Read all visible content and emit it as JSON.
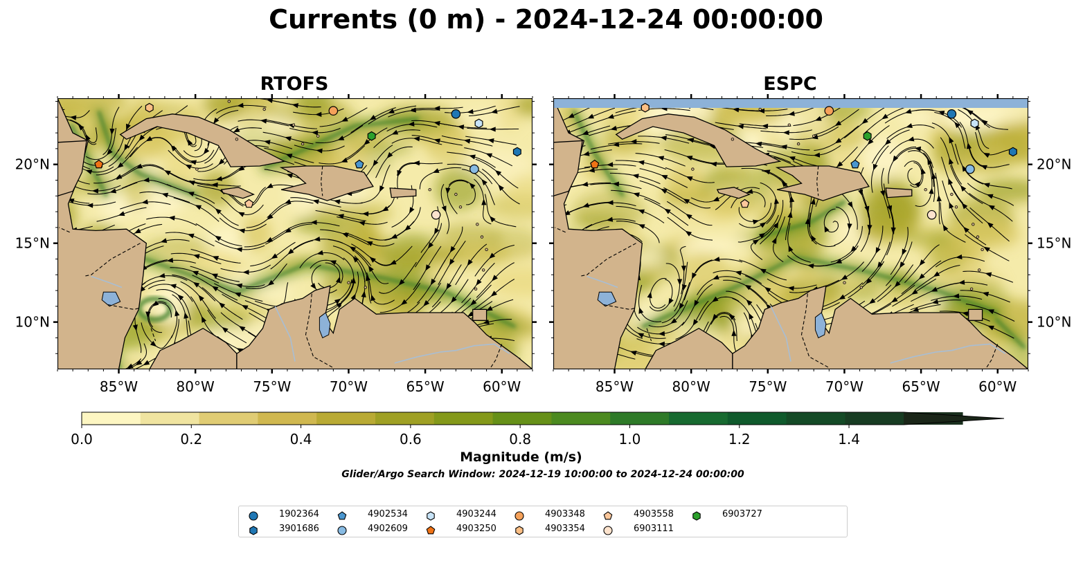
{
  "title": "Currents (0 m) - 2024-12-24 00:00:00",
  "panels": [
    {
      "id": "rtofs",
      "title": "RTOFS"
    },
    {
      "id": "espc",
      "title": "ESPC"
    }
  ],
  "axes": {
    "lon_ticks": [
      "85°W",
      "80°W",
      "75°W",
      "70°W",
      "65°W",
      "60°W"
    ],
    "lat_ticks": [
      "10°N",
      "15°N",
      "20°N"
    ],
    "lon_range": [
      -89,
      -58
    ],
    "lat_range": [
      7,
      24.2
    ]
  },
  "colorbar": {
    "label": "Magnitude (m/s)",
    "ticks": [
      "0.0",
      "0.2",
      "0.4",
      "0.6",
      "0.8",
      "1.0",
      "1.2",
      "1.4"
    ],
    "range": [
      0,
      1.5
    ],
    "extend": "max",
    "colors": [
      "#fdf6c2",
      "#f0e4a0",
      "#e0cc74",
      "#d0b850",
      "#b9aa34",
      "#9fa024",
      "#84991a",
      "#669018",
      "#4c8a20",
      "#2e7a28",
      "#176a30",
      "#0f5a2c",
      "#144a26",
      "#173c22",
      "#1a301e",
      "#1a2618"
    ]
  },
  "search_window": "Glider/Argo Search Window: 2024-12-19 10:00:00 to 2024-12-24 00:00:00",
  "colors": {
    "land": "#d2b48c",
    "water_body": "#8db2d8",
    "slow_current": "#f5ebaa",
    "fast_current": "#3a7d28"
  },
  "floats": [
    {
      "id": "1902364",
      "marker": "circle",
      "color": "#1f77b4",
      "lon": -63,
      "lat": 23.2
    },
    {
      "id": "3901686",
      "marker": "hexagon",
      "color": "#1f77b4",
      "lon": -59,
      "lat": 20.8
    },
    {
      "id": "4902534",
      "marker": "pentagon",
      "color": "#4a96cf",
      "lon": -69.3,
      "lat": 20
    },
    {
      "id": "4902609",
      "marker": "circle",
      "color": "#88bbe3",
      "lon": -61.8,
      "lat": 19.7
    },
    {
      "id": "4903244",
      "marker": "hexagon",
      "color": "#c7e3f7",
      "lon": -61.5,
      "lat": 22.6
    },
    {
      "id": "4903250",
      "marker": "pentagon",
      "color": "#f07316",
      "lon": -86.3,
      "lat": 20
    },
    {
      "id": "4903348",
      "marker": "circle",
      "color": "#f5a15a",
      "lon": -71,
      "lat": 23.4
    },
    {
      "id": "4903354",
      "marker": "hexagon",
      "color": "#fbbf85",
      "lon": -83,
      "lat": 23.6
    },
    {
      "id": "4903558",
      "marker": "pentagon",
      "color": "#fbc79b",
      "lon": -76.5,
      "lat": 17.5
    },
    {
      "id": "6903111",
      "marker": "circle",
      "color": "#fde3cd",
      "lon": -64.3,
      "lat": 16.8
    },
    {
      "id": "6903727",
      "marker": "hexagon",
      "color": "#2ca02c",
      "lon": -68.5,
      "lat": 21.8
    }
  ]
}
